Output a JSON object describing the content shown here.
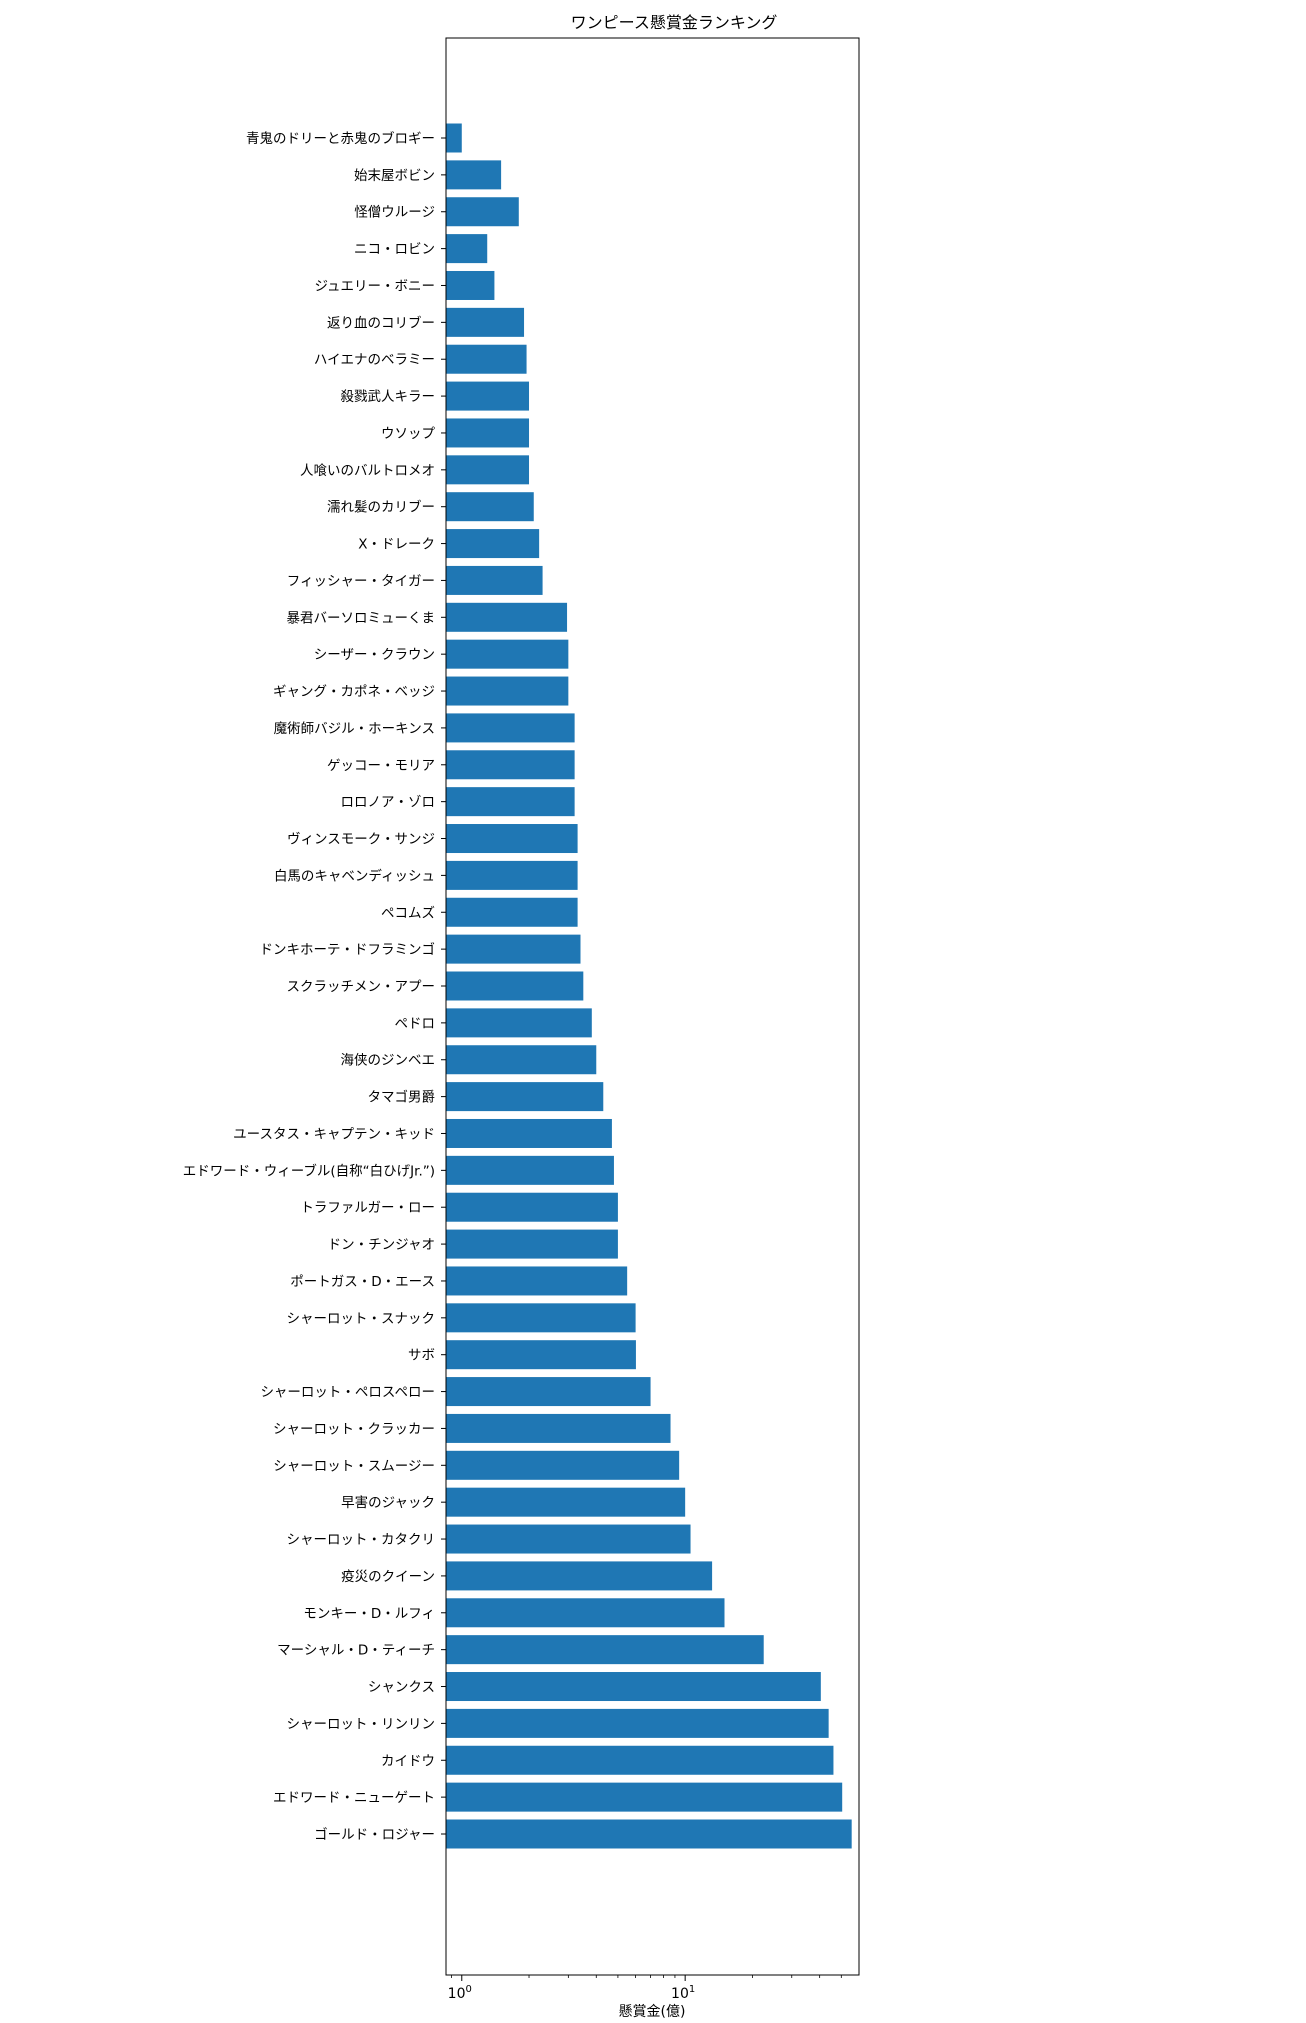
{
  "chart_data": {
    "type": "bar",
    "orientation": "horizontal",
    "title": "ワンピース懸賞金ランキング",
    "xlabel": "懸賞金(億)",
    "ylabel": "",
    "xscale": "log",
    "xlim": [
      0.85,
      60
    ],
    "xticks": [
      {
        "value": 1,
        "base": "10",
        "exp": "0"
      },
      {
        "value": 10,
        "base": "10",
        "exp": "1"
      }
    ],
    "bar_color": "#1f77b4",
    "grid": false,
    "categories": [
      "青鬼のドリーと赤鬼のブロギー",
      "始末屋ボビン",
      "怪僧ウルージ",
      "ニコ・ロビン",
      "ジュエリー・ボニー",
      "返り血のコリブー",
      "ハイエナのベラミー",
      "殺戮武人キラー",
      "ウソップ",
      "人喰いのバルトロメオ",
      "濡れ髪のカリブー",
      "X・ドレーク",
      "フィッシャー・タイガー",
      "暴君バーソロミューくま",
      "シーザー・クラウン",
      "ギャング・カポネ・ベッジ",
      "魔術師バジル・ホーキンス",
      "ゲッコー・モリア",
      "ロロノア・ゾロ",
      "ヴィンスモーク・サンジ",
      "白馬のキャベンディッシュ",
      "ペコムズ",
      "ドンキホーテ・ドフラミンゴ",
      "スクラッチメン・アプー",
      "ペドロ",
      "海侠のジンベエ",
      "タマゴ男爵",
      "ユースタス・キャプテン・キッド",
      "エドワード・ウィーブル(自称“白ひげJr.”)",
      "トラファルガー・ロー",
      "ドン・チンジャオ",
      "ポートガス・D・エース",
      "シャーロット・スナック",
      "サボ",
      "シャーロット・ペロスペロー",
      "シャーロット・クラッカー",
      "シャーロット・スムージー",
      "早害のジャック",
      "シャーロット・カタクリ",
      "疫災のクイーン",
      "モンキー・D・ルフィ",
      "マーシャル・D・ティーチ",
      "シャンクス",
      "シャーロット・リンリン",
      "カイドウ",
      "エドワード・ニューゲート",
      "ゴールド・ロジャー"
    ],
    "values": [
      1.0,
      1.5,
      1.8,
      1.3,
      1.4,
      1.9,
      1.95,
      2.0,
      2.0,
      2.0,
      2.1,
      2.22,
      2.3,
      2.96,
      3.0,
      3.0,
      3.2,
      3.2,
      3.2,
      3.3,
      3.3,
      3.3,
      3.4,
      3.5,
      3.82,
      4.0,
      4.3,
      4.7,
      4.8,
      5.0,
      5.0,
      5.5,
      6.0,
      6.02,
      7.0,
      8.6,
      9.4,
      10.0,
      10.57,
      13.2,
      15.0,
      22.47,
      40.48,
      43.88,
      46.11,
      50.46,
      55.64
    ]
  }
}
